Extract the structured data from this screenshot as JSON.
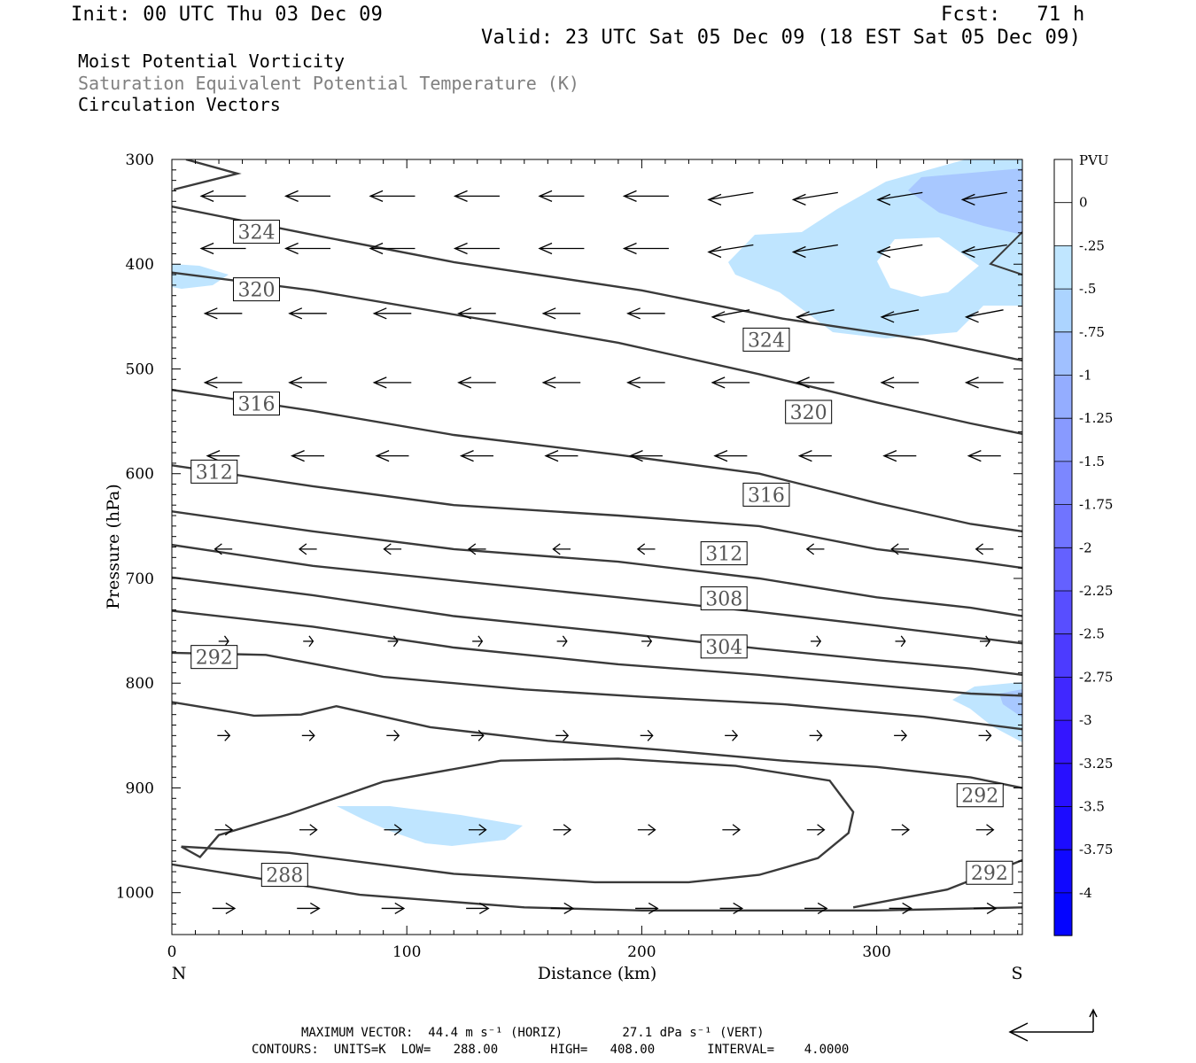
{
  "header": {
    "init": "Init: 00 UTC Thu 03 Dec 09",
    "fcst": "Fcst:   71 h",
    "valid": "Valid: 23 UTC Sat 05 Dec 09 (18 EST Sat 05 Dec 09)",
    "field1": "Moist Potential Vorticity",
    "field2": "Saturation Equivalent Potential Temperature (K)",
    "field3": "Circulation Vectors"
  },
  "footer": {
    "max_vector": "MAXIMUM VECTOR:  44.4 m s⁻¹ (HORIZ)        27.1 dPa s⁻¹ (VERT)",
    "contours": "CONTOURS:  UNITS=K  LOW=   288.00       HIGH=   408.00       INTERVAL=    4.0000"
  },
  "colors": {
    "contour": "#3a3a3a",
    "pv_light": "#bfe5ff",
    "pv_mid": "#a8c8ff"
  },
  "chart_data": {
    "type": "cross-section",
    "xlabel": "Distance (km)",
    "ylabel": "Pressure (hPa)",
    "x_ticks": [
      "0",
      "100",
      "200",
      "300"
    ],
    "x_tick_values": [
      0,
      100,
      200,
      300
    ],
    "xlim": [
      0,
      362
    ],
    "y_ticks": [
      "300",
      "400",
      "500",
      "600",
      "700",
      "800",
      "900",
      "1000"
    ],
    "y_tick_values": [
      300,
      400,
      500,
      600,
      700,
      800,
      900,
      1000
    ],
    "ylim": [
      300,
      1040
    ],
    "left_end": "N",
    "right_end": "S",
    "colorbar": {
      "unit": "PVU",
      "labels": [
        "0",
        "-.25",
        "-.5",
        "-.75",
        "-1",
        "-1.25",
        "-1.5",
        "-1.75",
        "-2",
        "-2.25",
        "-2.5",
        "-2.75",
        "-3",
        "-3.25",
        "-3.5",
        "-3.75",
        "-4"
      ],
      "colors": [
        "#ffffff",
        "#c0e6ff",
        "#acd4ff",
        "#a0c0ff",
        "#94adff",
        "#889aff",
        "#7c87ff",
        "#7074ff",
        "#6461ff",
        "#584eff",
        "#4c3bff",
        "#4028ff",
        "#3415ff",
        "#2810ff",
        "#1c0cff",
        "#1008ff",
        "#0404ff"
      ]
    },
    "contour_labels": [
      {
        "text": "324",
        "x": 36,
        "p": 369
      },
      {
        "text": "320",
        "x": 36,
        "p": 424
      },
      {
        "text": "316",
        "x": 36,
        "p": 533
      },
      {
        "text": "312",
        "x": 18,
        "p": 598
      },
      {
        "text": "292",
        "x": 18,
        "p": 775
      },
      {
        "text": "288",
        "x": 48,
        "p": 983
      },
      {
        "text": "324",
        "x": 253,
        "p": 472
      },
      {
        "text": "320",
        "x": 271,
        "p": 541
      },
      {
        "text": "316",
        "x": 253,
        "p": 620
      },
      {
        "text": "312",
        "x": 235,
        "p": 676
      },
      {
        "text": "308",
        "x": 235,
        "p": 719
      },
      {
        "text": "304",
        "x": 235,
        "p": 765
      },
      {
        "text": "292",
        "x": 344,
        "p": 907
      },
      {
        "text": "292",
        "x": 348,
        "p": 981
      }
    ],
    "contours": [
      [
        [
          0,
          345
        ],
        [
          60,
          372
        ],
        [
          120,
          398
        ],
        [
          200,
          425
        ],
        [
          260,
          452
        ],
        [
          320,
          472
        ],
        [
          362,
          492
        ]
      ],
      [
        [
          0,
          408
        ],
        [
          60,
          425
        ],
        [
          120,
          448
        ],
        [
          190,
          475
        ],
        [
          250,
          505
        ],
        [
          300,
          532
        ],
        [
          340,
          552
        ],
        [
          362,
          562
        ]
      ],
      [
        [
          0,
          520
        ],
        [
          60,
          540
        ],
        [
          120,
          563
        ],
        [
          190,
          582
        ],
        [
          250,
          600
        ],
        [
          300,
          628
        ],
        [
          340,
          648
        ],
        [
          362,
          655
        ]
      ],
      [
        [
          0,
          592
        ],
        [
          60,
          612
        ],
        [
          120,
          630
        ],
        [
          190,
          640
        ],
        [
          250,
          650
        ],
        [
          300,
          672
        ],
        [
          340,
          683
        ],
        [
          362,
          690
        ]
      ],
      [
        [
          0,
          636
        ],
        [
          60,
          655
        ],
        [
          120,
          672
        ],
        [
          190,
          684
        ],
        [
          250,
          700
        ],
        [
          300,
          718
        ],
        [
          340,
          728
        ],
        [
          362,
          736
        ]
      ],
      [
        [
          0,
          668
        ],
        [
          60,
          688
        ],
        [
          120,
          702
        ],
        [
          190,
          718
        ],
        [
          250,
          732
        ],
        [
          300,
          745
        ],
        [
          340,
          756
        ],
        [
          362,
          762
        ]
      ],
      [
        [
          0,
          699
        ],
        [
          60,
          716
        ],
        [
          120,
          736
        ],
        [
          190,
          752
        ],
        [
          250,
          767
        ],
        [
          300,
          778
        ],
        [
          340,
          786
        ],
        [
          362,
          792
        ]
      ],
      [
        [
          0,
          731
        ],
        [
          60,
          746
        ],
        [
          120,
          766
        ],
        [
          190,
          782
        ],
        [
          250,
          792
        ],
        [
          300,
          802
        ],
        [
          340,
          810
        ],
        [
          362,
          812
        ]
      ],
      [
        [
          0,
          771
        ],
        [
          40,
          773
        ],
        [
          90,
          794
        ],
        [
          150,
          806
        ],
        [
          200,
          813
        ],
        [
          260,
          820
        ],
        [
          320,
          832
        ],
        [
          362,
          844
        ]
      ],
      [
        [
          0,
          818
        ],
        [
          35,
          831
        ],
        [
          55,
          830
        ],
        [
          70,
          822
        ],
        [
          110,
          842
        ],
        [
          160,
          855
        ],
        [
          210,
          864
        ],
        [
          260,
          874
        ],
        [
          300,
          880
        ],
        [
          340,
          890
        ],
        [
          362,
          900
        ]
      ],
      [
        [
          0,
          973
        ],
        [
          80,
          1002
        ],
        [
          150,
          1014
        ],
        [
          200,
          1017
        ],
        [
          300,
          1017
        ],
        [
          362,
          1014
        ]
      ],
      [
        [
          362,
          969
        ],
        [
          330,
          997
        ],
        [
          290,
          1014
        ]
      ],
      [
        [
          4,
          956
        ],
        [
          50,
          962
        ],
        [
          120,
          982
        ],
        [
          180,
          990
        ],
        [
          220,
          990
        ],
        [
          250,
          983
        ],
        [
          275,
          967
        ],
        [
          288,
          943
        ],
        [
          290,
          923
        ],
        [
          280,
          893
        ],
        [
          240,
          879
        ],
        [
          190,
          872
        ],
        [
          140,
          874
        ],
        [
          90,
          894
        ],
        [
          50,
          925
        ],
        [
          20,
          945
        ],
        [
          12,
          966
        ],
        [
          4,
          956
        ]
      ]
    ],
    "vectors_note": "circulation vectors drawn from page-data rows",
    "vector_rows": [
      {
        "p": 335,
        "u": -1.0,
        "len": 36
      },
      {
        "p": 385,
        "u": -1.0,
        "len": 36
      },
      {
        "p": 447,
        "u": -1.0,
        "len": 30
      },
      {
        "p": 513,
        "u": -1.0,
        "len": 30
      },
      {
        "p": 583,
        "u": -1.0,
        "len": 26
      },
      {
        "p": 672,
        "u": -1.0,
        "len": 14
      },
      {
        "p": 760,
        "u": 0.6,
        "len": 8
      },
      {
        "p": 850,
        "u": 1.0,
        "len": 10
      },
      {
        "p": 940,
        "u": 1.0,
        "len": 14
      },
      {
        "p": 1015,
        "u": 1.0,
        "len": 18
      }
    ]
  }
}
